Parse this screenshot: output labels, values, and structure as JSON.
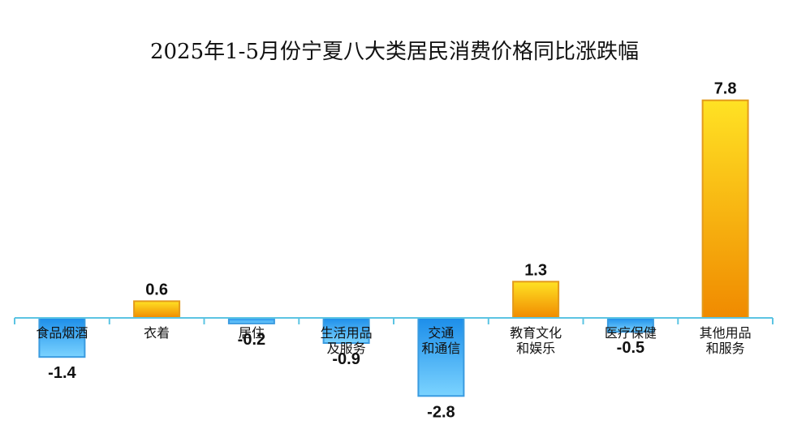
{
  "chart_data": {
    "type": "bar",
    "title": "2025年1-5月份宁夏八大类居民消费价格同比涨跌幅",
    "categories": [
      [
        "食品烟酒"
      ],
      [
        "衣着"
      ],
      [
        "居住"
      ],
      [
        "生活用品",
        "及服务"
      ],
      [
        "交通",
        "和通信"
      ],
      [
        "教育文化",
        "和娱乐"
      ],
      [
        "医疗保健"
      ],
      [
        "其他用品",
        "和服务"
      ]
    ],
    "values": [
      -1.4,
      0.6,
      -0.2,
      -0.9,
      -2.8,
      1.3,
      -0.5,
      7.8
    ],
    "value_labels": [
      "-1.4",
      "0.6",
      "-0.2",
      "-0.9",
      "-2.8",
      "1.3",
      "-0.5",
      "7.8"
    ],
    "ylim": [
      -2.8,
      7.8
    ],
    "grid": false,
    "legend": "none",
    "colors": {
      "positive_top": "#FFE224",
      "positive_bottom": "#F08A00",
      "positive_edge": "#E39A1C",
      "negative_top": "#1C8EEA",
      "negative_bottom": "#7BD3FF",
      "negative_edge": "#3A9BE0",
      "axis": "#5CC4E3"
    }
  }
}
